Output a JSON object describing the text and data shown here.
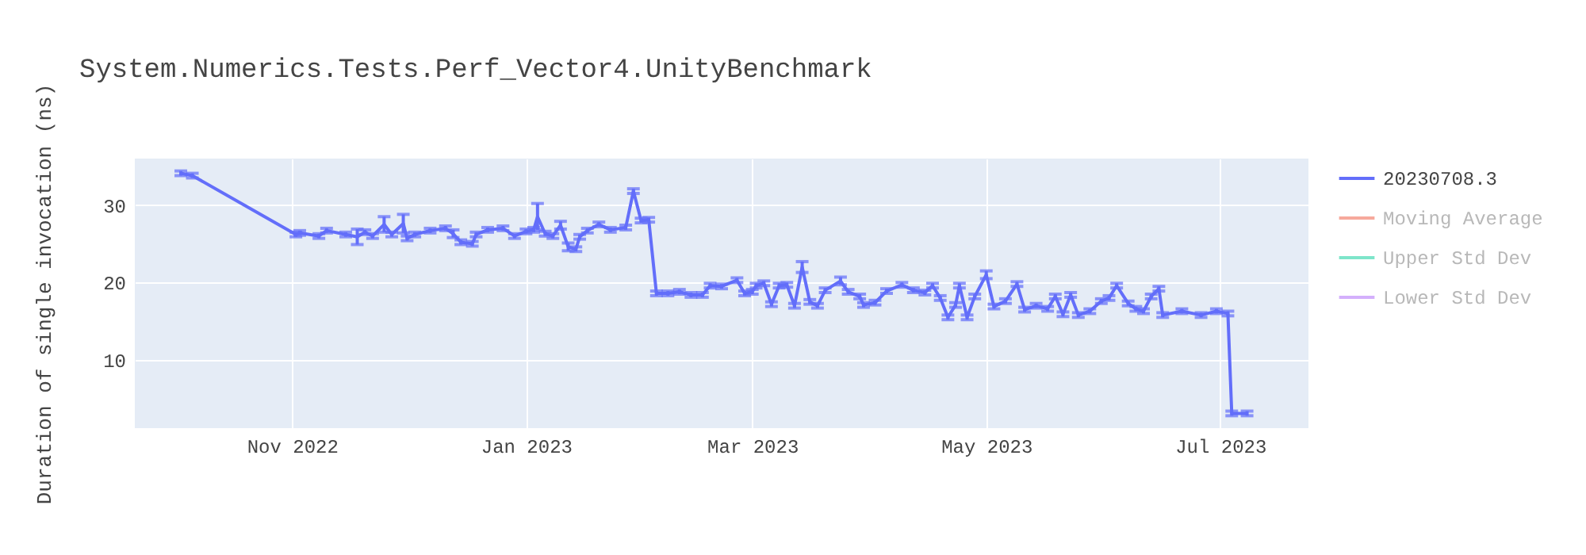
{
  "chart_data": {
    "type": "line",
    "title": "System.Numerics.Tests.Perf_Vector4.UnityBenchmark",
    "ylabel": "Duration of single invocation (ns)",
    "xlim": [
      "2022-09-21",
      "2023-07-24"
    ],
    "xticks": [
      {
        "value": "2022-11-01",
        "label": "Nov 2022"
      },
      {
        "value": "2023-01-01",
        "label": "Jan 2023"
      },
      {
        "value": "2023-03-01",
        "label": "Mar 2023"
      },
      {
        "value": "2023-05-01",
        "label": "May 2023"
      },
      {
        "value": "2023-07-01",
        "label": "Jul 2023"
      }
    ],
    "ylim": [
      1.2,
      36
    ],
    "yticks": [
      10,
      20,
      30
    ],
    "grid": true,
    "legend": "right",
    "marker": "none",
    "line_style": "solid",
    "series": [
      {
        "name": "20230708.3",
        "color": "#636efa",
        "x": [
          "2022-10-03",
          "2022-10-06",
          "2022-11-02",
          "2022-11-03",
          "2022-11-08",
          "2022-11-10",
          "2022-11-15",
          "2022-11-18",
          "2022-11-20",
          "2022-11-22",
          "2022-11-25",
          "2022-11-27",
          "2022-11-30",
          "2022-12-01",
          "2022-12-03",
          "2022-12-07",
          "2022-12-11",
          "2022-12-13",
          "2022-12-15",
          "2022-12-18",
          "2022-12-19",
          "2022-12-22",
          "2022-12-26",
          "2022-12-29",
          "2023-01-01",
          "2023-01-03",
          "2023-01-04",
          "2023-01-06",
          "2023-01-08",
          "2023-01-10",
          "2023-01-12",
          "2023-01-14",
          "2023-01-15",
          "2023-01-17",
          "2023-01-20",
          "2023-01-23",
          "2023-01-27",
          "2023-01-29",
          "2023-01-31",
          "2023-02-02",
          "2023-02-04",
          "2023-02-07",
          "2023-02-10",
          "2023-02-13",
          "2023-02-16",
          "2023-02-18",
          "2023-02-21",
          "2023-02-25",
          "2023-02-27",
          "2023-03-01",
          "2023-03-02",
          "2023-03-04",
          "2023-03-06",
          "2023-03-08",
          "2023-03-10",
          "2023-03-12",
          "2023-03-14",
          "2023-03-16",
          "2023-03-18",
          "2023-03-20",
          "2023-03-24",
          "2023-03-26",
          "2023-03-29",
          "2023-03-30",
          "2023-04-02",
          "2023-04-05",
          "2023-04-09",
          "2023-04-12",
          "2023-04-15",
          "2023-04-17",
          "2023-04-19",
          "2023-04-21",
          "2023-04-23",
          "2023-04-24",
          "2023-04-26",
          "2023-04-28",
          "2023-05-01",
          "2023-05-03",
          "2023-05-06",
          "2023-05-09",
          "2023-05-11",
          "2023-05-14",
          "2023-05-17",
          "2023-05-19",
          "2023-05-21",
          "2023-05-23",
          "2023-05-25",
          "2023-05-28",
          "2023-05-31",
          "2023-06-02",
          "2023-06-04",
          "2023-06-07",
          "2023-06-09",
          "2023-06-11",
          "2023-06-13",
          "2023-06-15",
          "2023-06-16",
          "2023-06-21",
          "2023-06-26",
          "2023-06-30",
          "2023-07-03",
          "2023-07-04",
          "2023-07-08"
        ],
        "values": [
          34.1,
          33.8,
          26.2,
          26.4,
          26.0,
          26.7,
          26.2,
          25.9,
          26.5,
          26.0,
          27.5,
          26.2,
          27.6,
          25.7,
          26.2,
          26.7,
          27.0,
          26.3,
          25.2,
          25.0,
          26.2,
          26.8,
          27.0,
          26.0,
          26.6,
          26.8,
          28.5,
          26.3,
          26.0,
          27.4,
          24.6,
          24.3,
          25.9,
          26.7,
          27.5,
          26.8,
          27.1,
          31.8,
          28.0,
          28.1,
          18.6,
          18.6,
          18.8,
          18.4,
          18.4,
          19.6,
          19.5,
          20.3,
          18.6,
          18.8,
          19.6,
          19.9,
          17.2,
          19.6,
          19.7,
          17.0,
          22.0,
          17.5,
          17.0,
          19.0,
          20.2,
          18.8,
          18.2,
          17.1,
          17.4,
          18.9,
          19.7,
          19.0,
          18.7,
          19.6,
          18.0,
          15.5,
          17.1,
          19.6,
          15.5,
          18.2,
          21.0,
          16.9,
          17.6,
          19.8,
          16.5,
          17.0,
          16.6,
          18.2,
          15.9,
          18.4,
          15.8,
          16.3,
          17.6,
          18.0,
          19.6,
          17.3,
          16.6,
          16.3,
          18.2,
          19.2,
          15.8,
          16.3,
          15.8,
          16.3,
          16.0,
          3.1,
          3.1
        ],
        "errors": [
          0.3,
          0.3,
          0.3,
          0.3,
          0.3,
          0.3,
          0.3,
          1.0,
          0.3,
          0.3,
          1.0,
          0.3,
          1.2,
          0.3,
          0.3,
          0.3,
          0.3,
          0.5,
          0.3,
          0.3,
          0.3,
          0.3,
          0.3,
          0.3,
          0.3,
          0.3,
          1.7,
          0.3,
          0.3,
          0.5,
          0.5,
          0.3,
          0.3,
          0.3,
          0.3,
          0.3,
          0.3,
          0.3,
          0.3,
          0.3,
          0.3,
          0.3,
          0.3,
          0.3,
          0.3,
          0.3,
          0.3,
          0.3,
          0.3,
          0.3,
          0.3,
          0.3,
          0.3,
          0.3,
          0.3,
          0.3,
          0.7,
          0.3,
          0.3,
          0.3,
          0.5,
          0.3,
          0.3,
          0.3,
          0.3,
          0.3,
          0.3,
          0.3,
          0.3,
          0.3,
          0.3,
          0.3,
          0.3,
          0.3,
          0.3,
          0.3,
          0.5,
          0.3,
          0.3,
          0.3,
          0.3,
          0.3,
          0.3,
          0.3,
          0.3,
          0.3,
          0.3,
          0.3,
          0.3,
          0.3,
          0.3,
          0.3,
          0.3,
          0.3,
          0.3,
          0.3,
          0.3,
          0.3,
          0.3,
          0.3,
          0.3,
          0.3,
          0.3
        ]
      },
      {
        "name": "Moving Average",
        "color": "#ef553b"
      },
      {
        "name": "Upper Std Dev",
        "color": "#00cc96"
      },
      {
        "name": "Lower Std Dev",
        "color": "#ab63fa"
      }
    ]
  }
}
